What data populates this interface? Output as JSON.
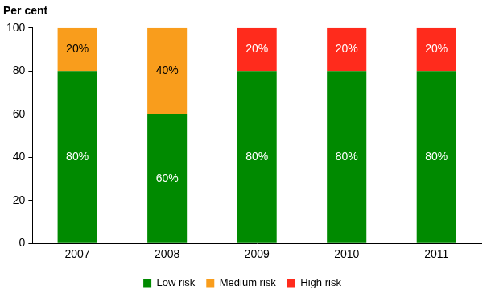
{
  "chart_data": {
    "type": "bar",
    "stacked": true,
    "y_label": "Per cent",
    "categories": [
      "2007",
      "2008",
      "2009",
      "2010",
      "2011"
    ],
    "series": [
      {
        "name": "Low risk",
        "color": "#008a00",
        "values": [
          80,
          60,
          80,
          80,
          80
        ],
        "value_labels": [
          "80%",
          "60%",
          "80%",
          "80%",
          "80%"
        ]
      },
      {
        "name": "Medium risk",
        "color": "#f99d1c",
        "values": [
          20,
          40,
          null,
          null,
          null
        ],
        "value_labels": [
          "20%",
          "40%",
          null,
          null,
          null
        ]
      },
      {
        "name": "High risk",
        "color": "#ff2b1c",
        "values": [
          null,
          null,
          20,
          20,
          20
        ],
        "value_labels": [
          null,
          null,
          "20%",
          "20%",
          "20%"
        ]
      }
    ],
    "ylim": [
      0,
      100
    ],
    "yticks": [
      0,
      20,
      40,
      60,
      80,
      100
    ],
    "grid": false,
    "legend": "bottom",
    "data_labels": true
  }
}
